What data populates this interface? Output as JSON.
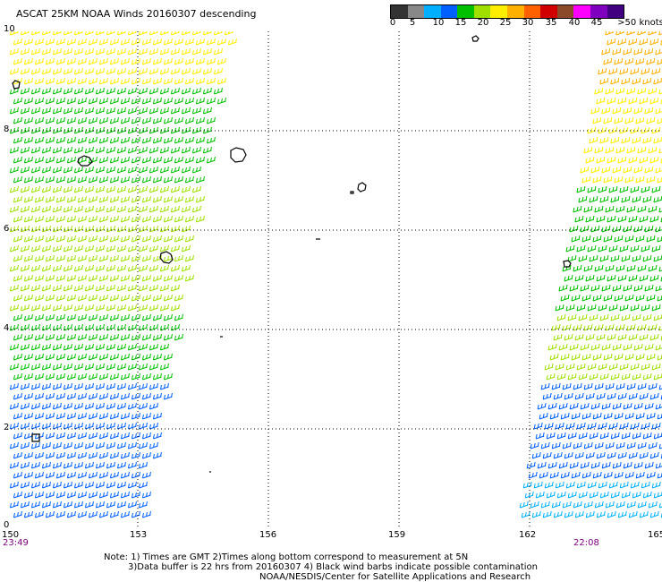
{
  "title": "ASCAT 25KM NOAA Winds 20160307 descending",
  "scale": {
    "colors": [
      "#333333",
      "#888888",
      "#00b0ff",
      "#0060ff",
      "#00c000",
      "#a0e000",
      "#ffee00",
      "#ffb000",
      "#ff6000",
      "#d00000",
      "#8b4a2a",
      "#ff00ff",
      "#8000c0",
      "#400080"
    ],
    "labels": [
      "0",
      "5",
      "10",
      "15",
      "20",
      "25",
      "30",
      "35",
      "40",
      "45",
      ">50 knots"
    ]
  },
  "map": {
    "lat_ticks": [
      "10",
      "8",
      "6",
      "4",
      "2",
      "0"
    ],
    "lon_ticks": [
      "150",
      "153",
      "156",
      "159",
      "162",
      "165"
    ]
  },
  "times": {
    "left": "23:49",
    "right": "22:08"
  },
  "notes": {
    "line1": "Note: 1) Times are GMT 2)Times along bottom correspond to measurement at 5N",
    "line2": "3)Data buffer is 22 hrs from 20160307 4) Black wind barbs indicate possible contamination",
    "line3": "NOAA/NESDIS/Center for Satellite Applications and Research"
  }
}
